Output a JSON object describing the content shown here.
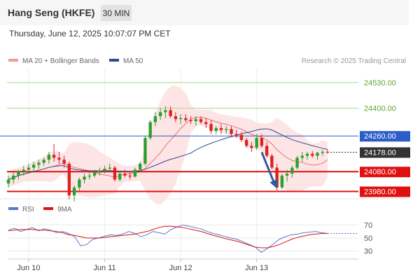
{
  "header": {
    "title": "Hang Seng (HKFE)",
    "timeframe": "30 MIN"
  },
  "datetime": "Thursday, June 12, 2025 10:07:07 PM CET",
  "colors": {
    "bb_line": "#e05555",
    "bb_fill": "#fde0e0",
    "ma50": "#2b4c8c",
    "candle_up": "#2e9e2e",
    "candle_down": "#e02020",
    "resistance": "#a8d88a",
    "resistance_label": "#5ea62e",
    "pivot": "#2b5cc8",
    "support": "#e01010",
    "current": "#333333",
    "arrow": "#2b5c9e",
    "rsi": "#5a78d0",
    "rsi_ma": "#e01010"
  },
  "chart_data": [
    {
      "type": "candlestick",
      "legend": {
        "placement": "top-left",
        "items": [
          {
            "name": "MA 20 + Bollinger Bands",
            "color": "#f29a9a"
          },
          {
            "name": "MA 50",
            "color": "#2b4c8c"
          }
        ]
      },
      "credit": "Research © 2025 Trading Central",
      "ylim": [
        23950,
        24600
      ],
      "x_ticks": [
        {
          "label": "Jun 10",
          "x": 4
        },
        {
          "label": "Jun 11",
          "x": 19
        },
        {
          "label": "Jun 12",
          "x": 34
        },
        {
          "label": "Jun 13",
          "x": 49
        }
      ],
      "levels": [
        {
          "value": 24530,
          "label": "24530.00",
          "kind": "resistance"
        },
        {
          "value": 24400,
          "label": "24400.00",
          "kind": "resistance"
        },
        {
          "value": 24260,
          "label": "24260.00",
          "kind": "pivot"
        },
        {
          "value": 24178,
          "label": "24178.00",
          "kind": "current"
        },
        {
          "value": 24080,
          "label": "24080.00",
          "kind": "support"
        },
        {
          "value": 23980,
          "label": "23980.00",
          "kind": "support"
        }
      ],
      "forecast_arrow": {
        "from": [
          50,
          24178
        ],
        "to": [
          53,
          23995
        ]
      },
      "candles": [
        [
          24020,
          24060,
          24000,
          24040
        ],
        [
          24040,
          24080,
          24020,
          24060
        ],
        [
          24060,
          24090,
          24040,
          24080
        ],
        [
          24080,
          24110,
          24060,
          24090
        ],
        [
          24090,
          24120,
          24070,
          24100
        ],
        [
          24100,
          24130,
          24080,
          24115
        ],
        [
          24115,
          24140,
          24095,
          24125
        ],
        [
          24125,
          24150,
          24110,
          24140
        ],
        [
          24140,
          24180,
          24120,
          24165
        ],
        [
          24165,
          24220,
          24130,
          24150
        ],
        [
          24150,
          24180,
          24120,
          24140
        ],
        [
          24140,
          24160,
          24100,
          24120
        ],
        [
          24120,
          24130,
          23940,
          23960
        ],
        [
          23960,
          24010,
          23930,
          24000
        ],
        [
          24000,
          24050,
          23980,
          24040
        ],
        [
          24040,
          24070,
          24020,
          24055
        ],
        [
          24055,
          24080,
          24040,
          24060
        ],
        [
          24060,
          24090,
          24050,
          24075
        ],
        [
          24075,
          24100,
          24060,
          24085
        ],
        [
          24085,
          24110,
          24070,
          24095
        ],
        [
          24095,
          24120,
          24080,
          24100
        ],
        [
          24100,
          24110,
          24030,
          24040
        ],
        [
          24040,
          24080,
          24030,
          24070
        ],
        [
          24070,
          24090,
          24050,
          24060
        ],
        [
          24060,
          24080,
          24040,
          24055
        ],
        [
          24055,
          24100,
          24050,
          24090
        ],
        [
          24090,
          24130,
          24080,
          24120
        ],
        [
          24120,
          24260,
          24110,
          24250
        ],
        [
          24250,
          24340,
          24240,
          24330
        ],
        [
          24330,
          24380,
          24310,
          24360
        ],
        [
          24360,
          24400,
          24340,
          24380
        ],
        [
          24380,
          24410,
          24350,
          24390
        ],
        [
          24390,
          24410,
          24350,
          24360
        ],
        [
          24360,
          24380,
          24330,
          24345
        ],
        [
          24345,
          24370,
          24320,
          24350
        ],
        [
          24350,
          24370,
          24330,
          24340
        ],
        [
          24340,
          24360,
          24320,
          24335
        ],
        [
          24335,
          24360,
          24310,
          24345
        ],
        [
          24345,
          24360,
          24320,
          24330
        ],
        [
          24330,
          24350,
          24300,
          24320
        ],
        [
          24320,
          24340,
          24270,
          24285
        ],
        [
          24285,
          24310,
          24270,
          24300
        ],
        [
          24300,
          24320,
          24270,
          24290
        ],
        [
          24290,
          24310,
          24270,
          24295
        ],
        [
          24295,
          24310,
          24260,
          24270
        ],
        [
          24270,
          24290,
          24250,
          24265
        ],
        [
          24265,
          24280,
          24230,
          24240
        ],
        [
          24240,
          24250,
          24200,
          24210
        ],
        [
          24210,
          24230,
          24180,
          24200
        ],
        [
          24200,
          24270,
          24190,
          24250
        ],
        [
          24250,
          24270,
          24200,
          24210
        ],
        [
          24210,
          24230,
          24150,
          24160
        ],
        [
          24160,
          24170,
          24090,
          24100
        ],
        [
          24100,
          24120,
          23985,
          24000
        ],
        [
          24000,
          24070,
          23990,
          24060
        ],
        [
          24060,
          24090,
          24030,
          24070
        ],
        [
          24070,
          24110,
          24050,
          24100
        ],
        [
          24100,
          24160,
          24090,
          24150
        ],
        [
          24150,
          24180,
          24130,
          24160
        ],
        [
          24160,
          24180,
          24140,
          24170
        ],
        [
          24170,
          24185,
          24150,
          24160
        ],
        [
          24160,
          24180,
          24140,
          24175
        ],
        [
          24175,
          24190,
          24160,
          24180
        ],
        [
          24180,
          24190,
          24170,
          24178
        ]
      ]
    },
    {
      "type": "line",
      "legend": {
        "placement": "top-left",
        "items": [
          {
            "name": "RSI",
            "color": "#5a78d0"
          },
          {
            "name": "9MA",
            "color": "#e01010"
          }
        ]
      },
      "ylim": [
        20,
        80
      ],
      "y_ticks": [
        "70",
        "50",
        "30"
      ],
      "series": [
        {
          "name": "RSI",
          "values": [
            62,
            65,
            60,
            63,
            66,
            61,
            64,
            62,
            58,
            60,
            57,
            52,
            38,
            40,
            48,
            50,
            53,
            55,
            54,
            56,
            60,
            57,
            52,
            55,
            60,
            58,
            56,
            63,
            67,
            70,
            68,
            66,
            64,
            60,
            57,
            55,
            52,
            50,
            48,
            44,
            40,
            36,
            28,
            34,
            41,
            48,
            52,
            55,
            56,
            58,
            59,
            60,
            58,
            57
          ]
        },
        {
          "name": "9MA",
          "values": [
            61,
            62,
            63,
            63,
            63,
            62,
            62,
            61,
            60,
            58,
            55,
            54,
            52,
            50,
            50,
            50,
            51,
            52,
            53,
            54,
            55,
            56,
            58,
            60,
            63,
            66,
            68,
            68,
            67,
            66,
            64,
            62,
            60,
            57,
            54,
            52,
            49,
            47,
            45,
            42,
            39,
            36,
            35,
            35,
            37,
            40,
            44,
            48,
            51,
            53,
            55,
            56,
            57,
            57
          ]
        }
      ]
    }
  ]
}
